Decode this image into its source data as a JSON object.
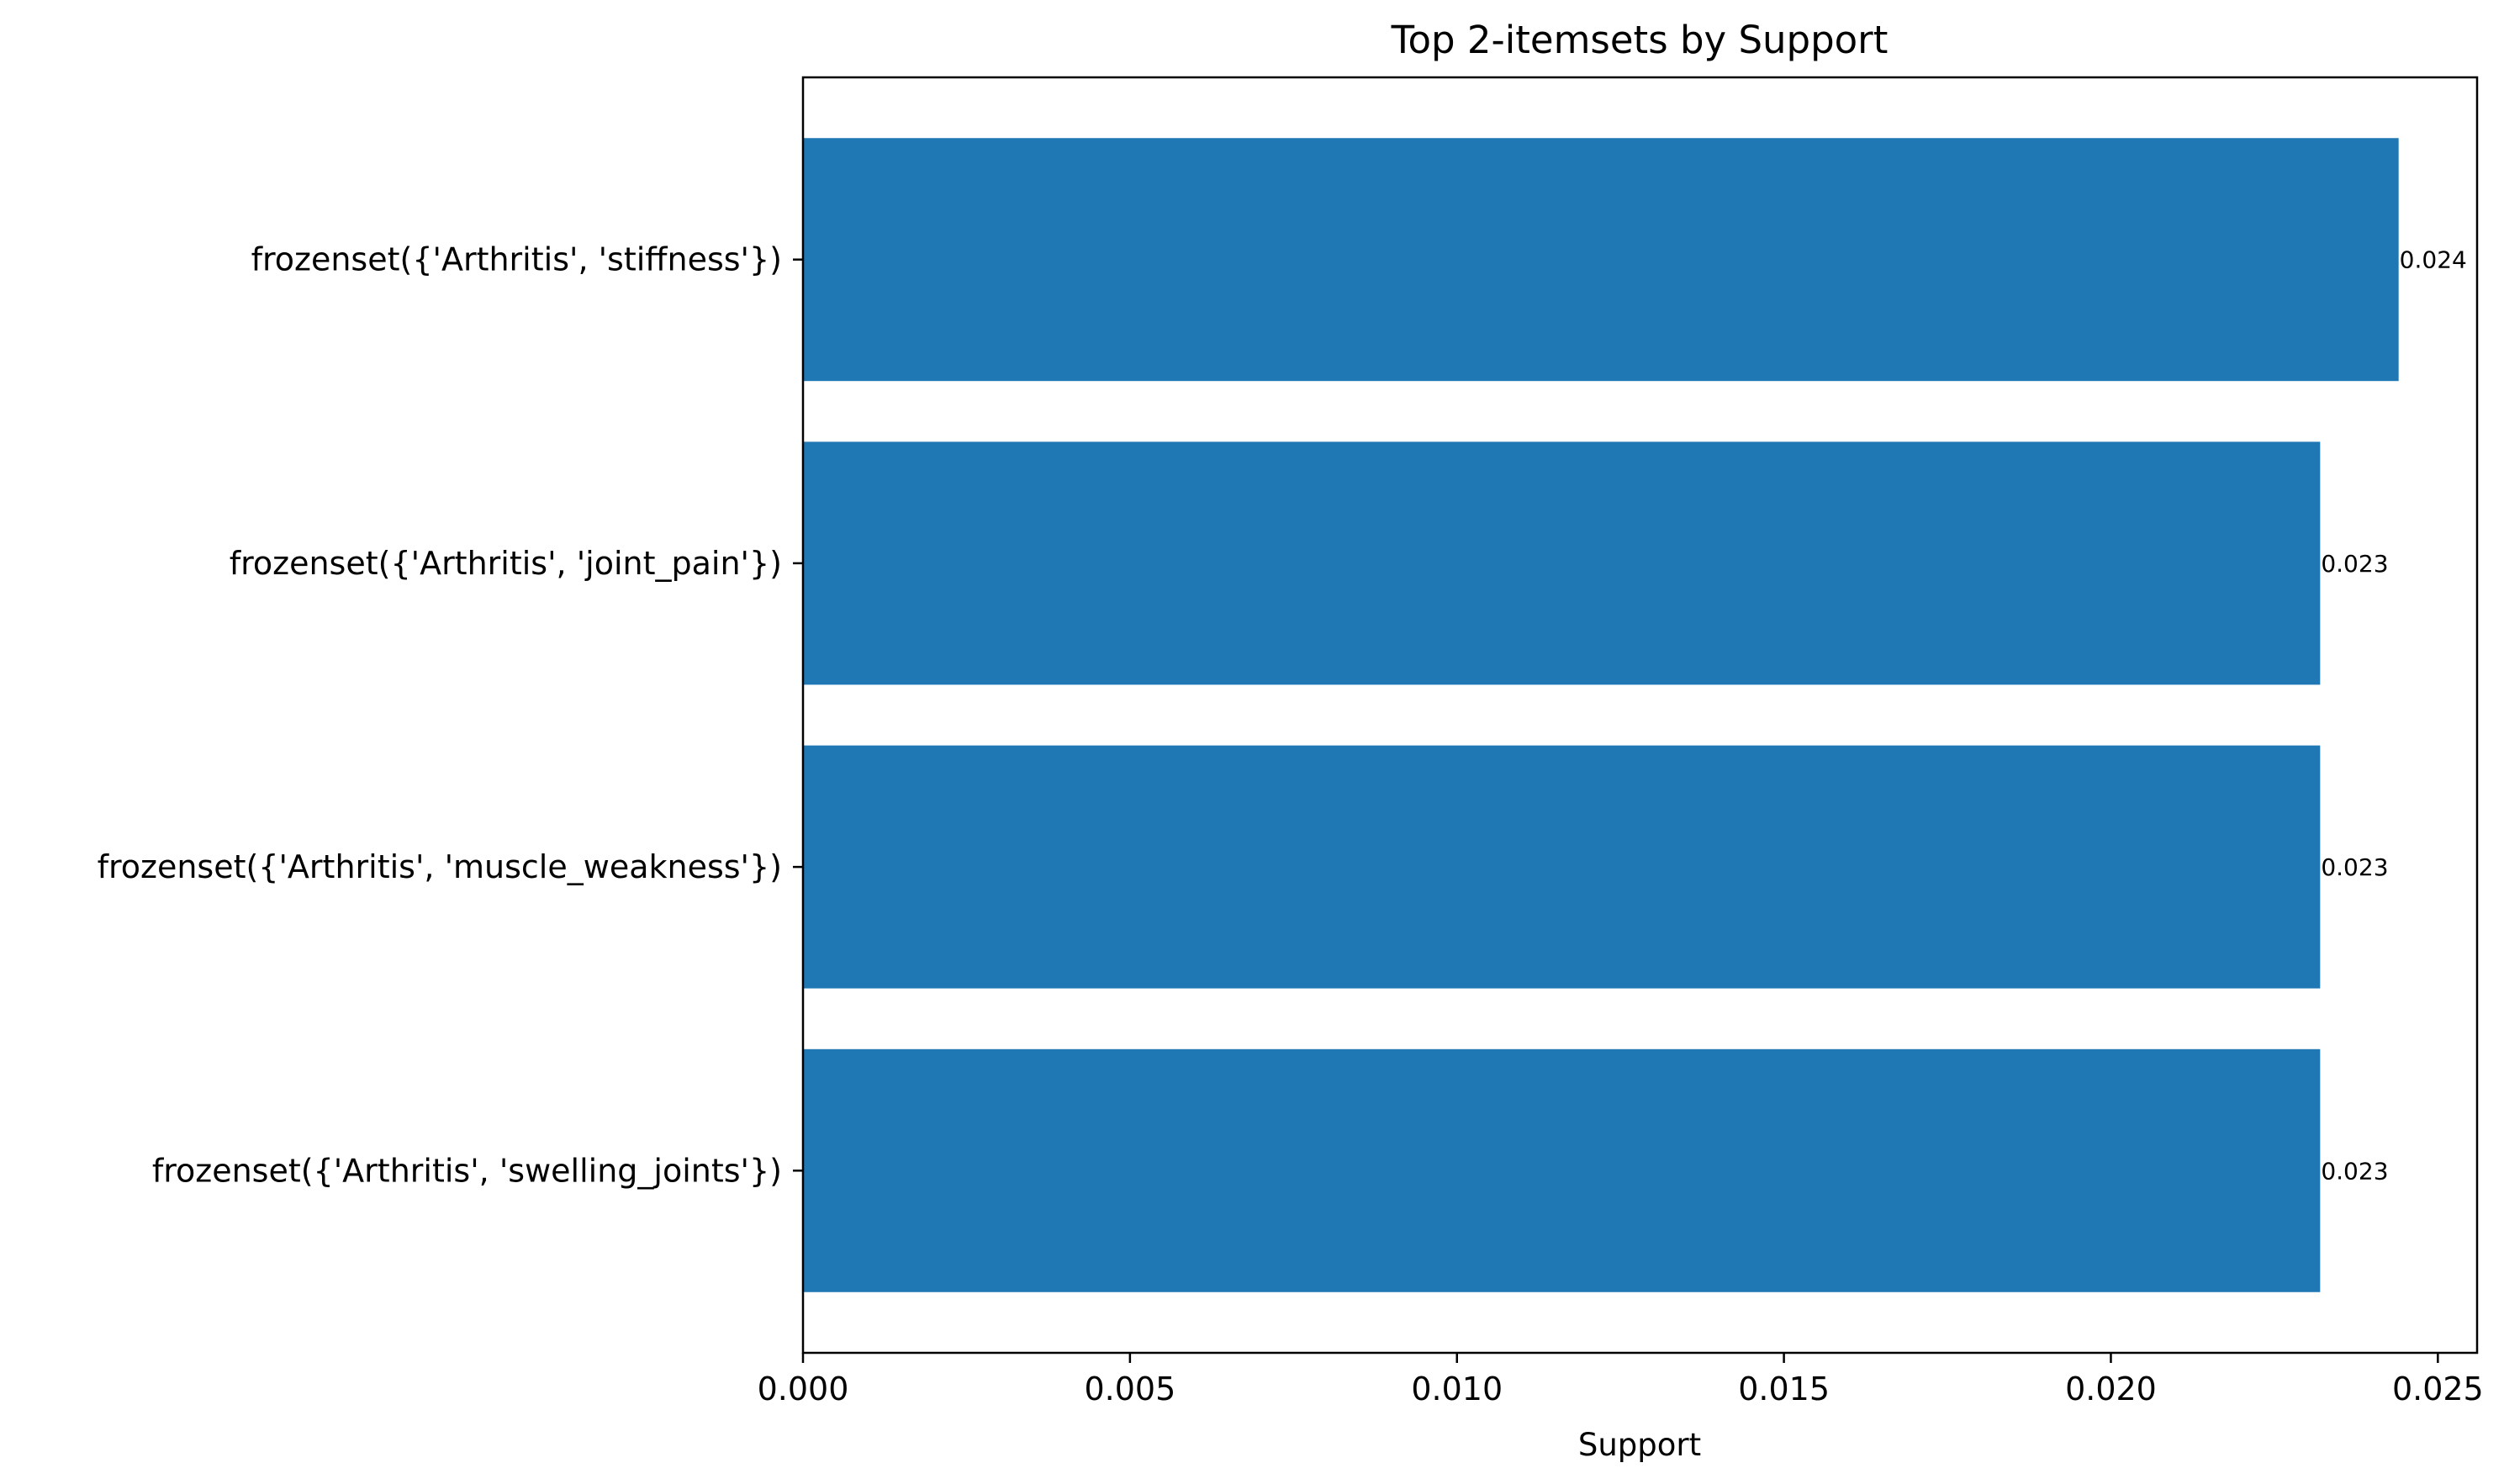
{
  "chart_data": {
    "type": "bar",
    "orientation": "horizontal",
    "title": "Top 2-itemsets by Support",
    "xlabel": "Support",
    "ylabel": "",
    "categories": [
      "frozenset({'Arthritis', 'stiffness'})",
      "frozenset({'Arthritis', 'joint_pain'})",
      "frozenset({'Arthritis', 'muscle_weakness'})",
      "frozenset({'Arthritis', 'swelling_joints'})"
    ],
    "values": [
      0.0244,
      0.0232,
      0.0232,
      0.0232
    ],
    "data_labels": [
      "0.024",
      "0.023",
      "0.023",
      "0.023"
    ],
    "xlim": [
      0,
      0.0256
    ],
    "xticks": [
      0,
      0.005,
      0.01,
      0.015,
      0.02,
      0.025
    ],
    "xtick_labels": [
      "0.000",
      "0.005",
      "0.010",
      "0.015",
      "0.020",
      "0.025"
    ],
    "bar_color": "#1f77b4",
    "grid": false,
    "legend": "none"
  }
}
